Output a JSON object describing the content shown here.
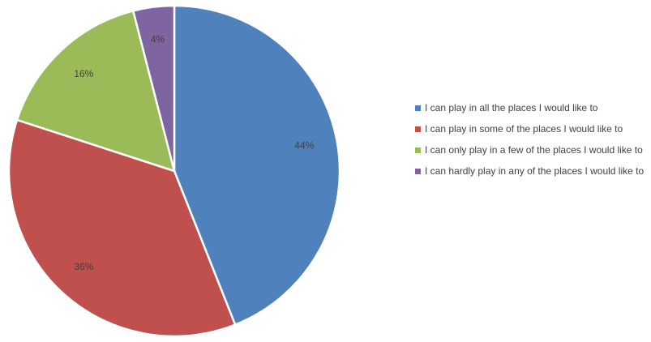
{
  "chart_data": {
    "type": "pie",
    "title": "",
    "slices": [
      {
        "name": "I can play in all the places I would like to",
        "value": 44,
        "label": "44%",
        "color": "#4f81bd"
      },
      {
        "name": "I can play in some of the places I would like to",
        "value": 36,
        "label": "36%",
        "color": "#c0504d"
      },
      {
        "name": "I can only play in a few of the places I would like to",
        "value": 16,
        "label": "16%",
        "color": "#9bbb59"
      },
      {
        "name": "I can hardly play in any of the places I would like to",
        "value": 4,
        "label": "4%",
        "color": "#8064a2"
      }
    ],
    "start_angle_deg": 0,
    "direction": "clockwise",
    "legend_position": "right",
    "slice_border_color": "#ffffff"
  }
}
